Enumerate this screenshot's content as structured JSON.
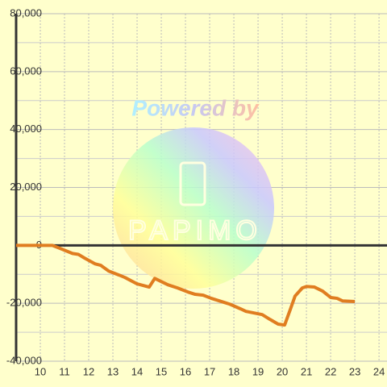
{
  "chart_data": {
    "type": "line",
    "watermark": {
      "line1": "Powered by",
      "line2": "PAPIMO"
    },
    "x": [
      9,
      10.5,
      10.83,
      11.33,
      11.57,
      11.83,
      12.27,
      12.5,
      12.83,
      13.27,
      13.5,
      14,
      14.5,
      14.73,
      15.27,
      15.67,
      16.1,
      16.4,
      16.73,
      17.07,
      17.6,
      17.83,
      18.27,
      18.5,
      19.17,
      19.5,
      19.83,
      20.1,
      20.33,
      20.53,
      20.83,
      21,
      21.33,
      21.67,
      22,
      22.27,
      22.5,
      23
    ],
    "series": [
      {
        "color": "#e07d20",
        "values": [
          0,
          0,
          -1100,
          -2800,
          -3100,
          -4400,
          -6400,
          -6900,
          -8900,
          -10300,
          -11100,
          -13300,
          -14400,
          -11400,
          -13600,
          -14700,
          -16100,
          -16900,
          -17200,
          -18300,
          -19700,
          -20300,
          -21900,
          -22800,
          -23900,
          -25600,
          -27200,
          -27500,
          -22200,
          -17500,
          -14700,
          -14200,
          -14400,
          -15800,
          -18000,
          -18300,
          -19200,
          -19400
        ]
      }
    ],
    "xlim": [
      9,
      24.33
    ],
    "xticks": [
      10,
      11,
      12,
      13,
      14,
      15,
      16,
      17,
      18,
      19,
      20,
      21,
      22,
      23,
      24
    ],
    "ylim": [
      -40000,
      80000
    ],
    "yticks": [
      {
        "value": -40000,
        "label": "-40,000"
      },
      {
        "value": -20000,
        "label": "-20,000"
      },
      0,
      {
        "value": 20000,
        "label": "20,000"
      },
      {
        "value": 40000,
        "label": "40,000"
      },
      {
        "value": 60000,
        "label": "60,000"
      },
      {
        "value": 80000,
        "label": "80,000"
      }
    ],
    "minor_yticks": [
      -30000,
      -10000,
      10000,
      30000,
      50000,
      70000
    ],
    "grid": true
  }
}
